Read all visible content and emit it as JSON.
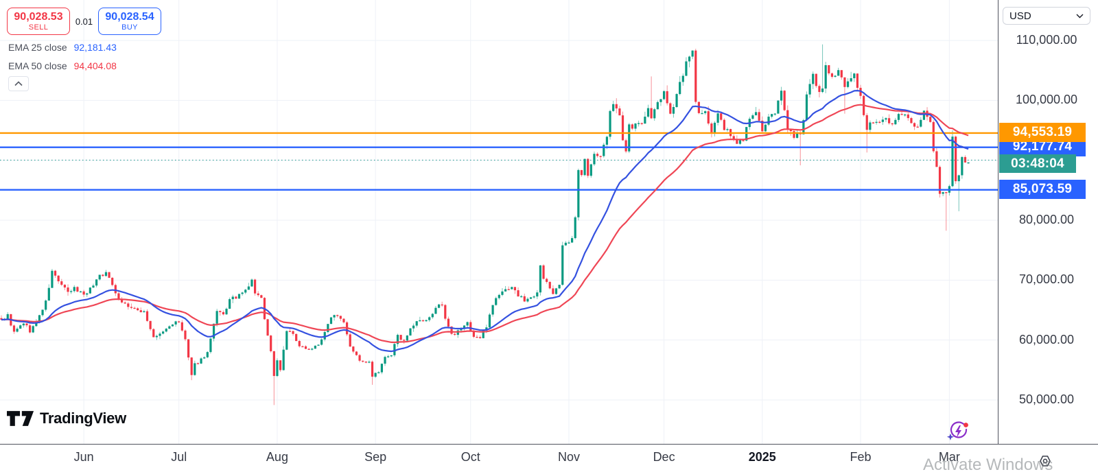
{
  "header": {
    "sell": {
      "price": "90,028.53",
      "label": "SELL"
    },
    "spread": "0.01",
    "buy": {
      "price": "90,028.54",
      "label": "BUY"
    },
    "indicators": [
      {
        "label": "EMA 25 close",
        "value": "92,181.43",
        "color": "#2962FF"
      },
      {
        "label": "EMA 50 close",
        "value": "94,404.08",
        "color": "#F23645"
      }
    ]
  },
  "logo_text": "TradingView",
  "watermark_text": "Activate Windows",
  "price_axis": {
    "currency": "USD",
    "ticks": [
      {
        "label": "110,000.00",
        "price": 110000
      },
      {
        "label": "100,000.00",
        "price": 100000
      },
      {
        "label": "90,000.00",
        "price": 90000
      },
      {
        "label": "80,000.00",
        "price": 80000
      },
      {
        "label": "70,000.00",
        "price": 70000
      },
      {
        "label": "60,000.00",
        "price": 60000
      },
      {
        "label": "50,000.00",
        "price": 50000
      }
    ]
  },
  "time_axis": {
    "labels": [
      {
        "text": "Jun",
        "day": 26,
        "bold": false
      },
      {
        "text": "Jul",
        "day": 56,
        "bold": false
      },
      {
        "text": "Aug",
        "day": 87,
        "bold": false
      },
      {
        "text": "Sep",
        "day": 118,
        "bold": false
      },
      {
        "text": "Oct",
        "day": 148,
        "bold": false
      },
      {
        "text": "Nov",
        "day": 179,
        "bold": false
      },
      {
        "text": "Dec",
        "day": 209,
        "bold": false
      },
      {
        "text": "2025",
        "day": 240,
        "bold": true
      },
      {
        "text": "Feb",
        "day": 271,
        "bold": false
      },
      {
        "text": "Mar",
        "day": 299,
        "bold": false
      }
    ]
  },
  "chart_data": {
    "type": "candlestick",
    "ylim": [
      46000,
      112000
    ],
    "grid": true,
    "colors": {
      "up": "#089981",
      "down": "#F23645",
      "ema25": "#3451E0",
      "ema50": "#EF4655",
      "level_blue": "#2962FF",
      "level_orange": "#FF9800",
      "countdown": "#2C9D92",
      "grid": "#eef1f7"
    },
    "close_anchors": [
      [
        0,
        63400
      ],
      [
        2,
        64100
      ],
      [
        4,
        61200
      ],
      [
        7,
        62900
      ],
      [
        9,
        61500
      ],
      [
        11,
        63000
      ],
      [
        14,
        66300
      ],
      [
        16,
        71400
      ],
      [
        18,
        69900
      ],
      [
        21,
        67800
      ],
      [
        23,
        68600
      ],
      [
        26,
        67700
      ],
      [
        28,
        68500
      ],
      [
        31,
        70900
      ],
      [
        33,
        71100
      ],
      [
        35,
        69400
      ],
      [
        37,
        66800
      ],
      [
        39,
        66000
      ],
      [
        42,
        65000
      ],
      [
        45,
        64800
      ],
      [
        48,
        60300
      ],
      [
        50,
        61000
      ],
      [
        52,
        61800
      ],
      [
        54,
        62800
      ],
      [
        56,
        62900
      ],
      [
        58,
        60100
      ],
      [
        60,
        53900
      ],
      [
        61,
        55900
      ],
      [
        63,
        56800
      ],
      [
        65,
        57900
      ],
      [
        68,
        64700
      ],
      [
        70,
        64100
      ],
      [
        72,
        66700
      ],
      [
        75,
        67400
      ],
      [
        77,
        68200
      ],
      [
        79,
        69900
      ],
      [
        80,
        67900
      ],
      [
        82,
        66800
      ],
      [
        84,
        60700
      ],
      [
        85,
        58100
      ],
      [
        86,
        54100
      ],
      [
        87,
        56600
      ],
      [
        88,
        55100
      ],
      [
        90,
        61700
      ],
      [
        92,
        60900
      ],
      [
        94,
        58700
      ],
      [
        96,
        58800
      ],
      [
        98,
        58500
      ],
      [
        100,
        59400
      ],
      [
        102,
        61100
      ],
      [
        104,
        64100
      ],
      [
        106,
        64300
      ],
      [
        108,
        63200
      ],
      [
        110,
        59100
      ],
      [
        112,
        57300
      ],
      [
        114,
        56200
      ],
      [
        116,
        56200
      ],
      [
        117,
        53950
      ],
      [
        119,
        54600
      ],
      [
        121,
        57000
      ],
      [
        123,
        57600
      ],
      [
        125,
        60600
      ],
      [
        127,
        60000
      ],
      [
        129,
        61700
      ],
      [
        131,
        63200
      ],
      [
        133,
        63000
      ],
      [
        135,
        63600
      ],
      [
        137,
        65700
      ],
      [
        139,
        65600
      ],
      [
        140,
        63300
      ],
      [
        142,
        60800
      ],
      [
        143,
        60700
      ],
      [
        145,
        62100
      ],
      [
        147,
        62800
      ],
      [
        149,
        60600
      ],
      [
        151,
        60300
      ],
      [
        153,
        62400
      ],
      [
        155,
        66100
      ],
      [
        157,
        67600
      ],
      [
        159,
        68400
      ],
      [
        161,
        69000
      ],
      [
        163,
        67400
      ],
      [
        165,
        66700
      ],
      [
        167,
        67000
      ],
      [
        169,
        68200
      ],
      [
        170,
        72700
      ],
      [
        171,
        70200
      ],
      [
        172,
        69400
      ],
      [
        174,
        67900
      ],
      [
        176,
        69400
      ],
      [
        177,
        75600
      ],
      [
        178,
        75900
      ],
      [
        180,
        76700
      ],
      [
        181,
        80400
      ],
      [
        182,
        88700
      ],
      [
        183,
        87900
      ],
      [
        184,
        90500
      ],
      [
        185,
        87300
      ],
      [
        187,
        91000
      ],
      [
        189,
        90600
      ],
      [
        190,
        92300
      ],
      [
        191,
        94300
      ],
      [
        192,
        98400
      ],
      [
        193,
        98900
      ],
      [
        195,
        97700
      ],
      [
        196,
        93100
      ],
      [
        197,
        91900
      ],
      [
        198,
        95900
      ],
      [
        199,
        95600
      ],
      [
        201,
        96400
      ],
      [
        202,
        95900
      ],
      [
        204,
        98700
      ],
      [
        205,
        96600
      ],
      [
        207,
        99900
      ],
      [
        209,
        101100
      ],
      [
        211,
        97300
      ],
      [
        213,
        101400
      ],
      [
        215,
        104500
      ],
      [
        216,
        106100
      ],
      [
        218,
        108000
      ],
      [
        219,
        100200
      ],
      [
        220,
        97500
      ],
      [
        222,
        97800
      ],
      [
        224,
        95100
      ],
      [
        226,
        97700
      ],
      [
        228,
        95300
      ],
      [
        230,
        94200
      ],
      [
        232,
        92600
      ],
      [
        234,
        93700
      ],
      [
        236,
        96900
      ],
      [
        238,
        98200
      ],
      [
        240,
        94600
      ],
      [
        242,
        96900
      ],
      [
        244,
        98100
      ],
      [
        246,
        102100
      ],
      [
        248,
        95000
      ],
      [
        250,
        94200
      ],
      [
        252,
        94500
      ],
      [
        253,
        96600
      ],
      [
        254,
        100500
      ],
      [
        256,
        104000
      ],
      [
        258,
        101100
      ],
      [
        259,
        102000
      ],
      [
        260,
        106100
      ],
      [
        262,
        103900
      ],
      [
        264,
        104800
      ],
      [
        266,
        102100
      ],
      [
        268,
        103700
      ],
      [
        269,
        104700
      ],
      [
        270,
        102400
      ],
      [
        271,
        100600
      ],
      [
        272,
        97700
      ],
      [
        273,
        95200
      ],
      [
        275,
        96600
      ],
      [
        277,
        96500
      ],
      [
        279,
        97400
      ],
      [
        281,
        95800
      ],
      [
        283,
        97700
      ],
      [
        285,
        97500
      ],
      [
        287,
        96100
      ],
      [
        289,
        95700
      ],
      [
        291,
        98300
      ],
      [
        293,
        96100
      ],
      [
        294,
        91400
      ],
      [
        295,
        88600
      ],
      [
        296,
        84000
      ],
      [
        297,
        84700
      ],
      [
        298,
        84300
      ],
      [
        299,
        86000
      ],
      [
        300,
        94200
      ],
      [
        301,
        86200
      ],
      [
        302,
        87200
      ],
      [
        303,
        90600
      ],
      [
        304,
        89900
      ],
      [
        305,
        90028.53
      ]
    ],
    "wick_events": [
      {
        "day": 60,
        "low": 53300
      },
      {
        "day": 86,
        "low": 49150
      },
      {
        "day": 117,
        "low": 52530
      },
      {
        "day": 205,
        "high": 104000
      },
      {
        "day": 218,
        "high": 108350
      },
      {
        "day": 252,
        "low": 89160
      },
      {
        "day": 259,
        "high": 109350
      },
      {
        "day": 266,
        "low": 97780
      },
      {
        "day": 273,
        "low": 91300
      },
      {
        "day": 298,
        "low": 78250
      },
      {
        "day": 300,
        "high": 95000
      },
      {
        "day": 302,
        "low": 81500
      }
    ],
    "levels": [
      {
        "label": "94,553.19",
        "price": 94553.19,
        "color": "#FF9800",
        "z": 3
      },
      {
        "label": "92,177.74",
        "price": 92177.74,
        "color": "#2962FF",
        "z": 2
      },
      {
        "label": "85,073.59",
        "price": 85073.59,
        "color": "#2962FF",
        "z": 2
      }
    ],
    "current": {
      "price": 90028.53,
      "countdown": "03:48:04",
      "color": "#2C9D92"
    },
    "ema_lengths": [
      25,
      50
    ]
  }
}
